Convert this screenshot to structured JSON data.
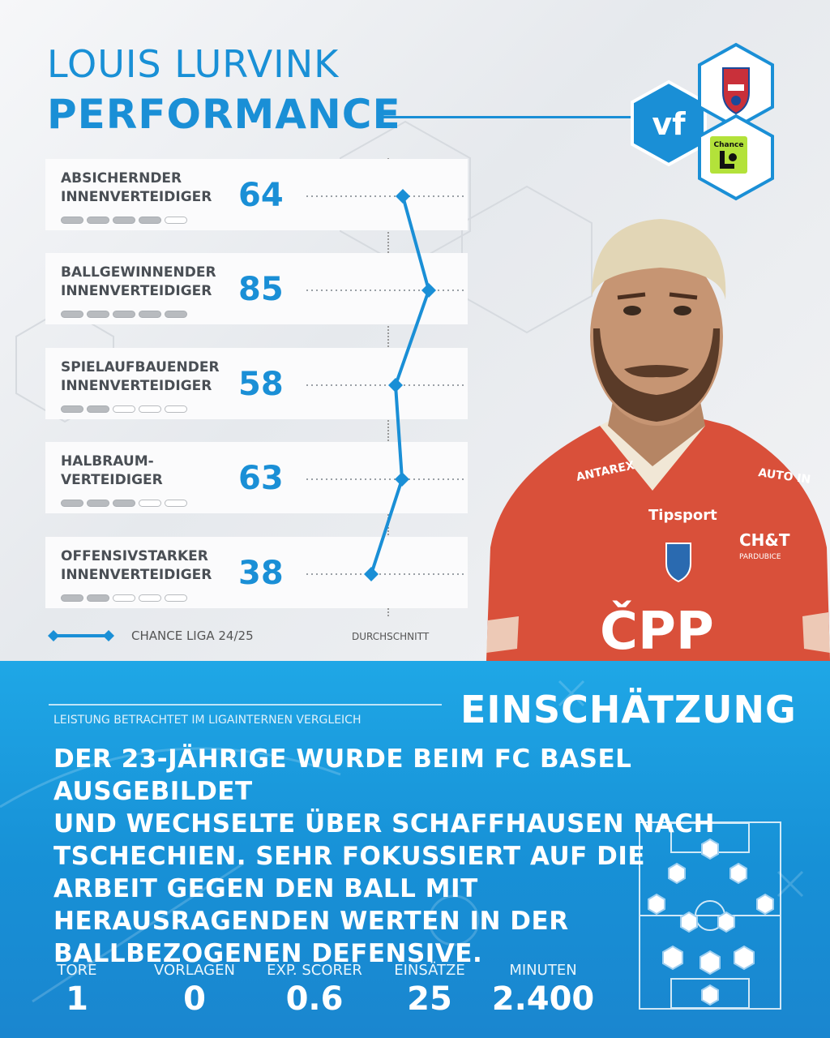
{
  "header": {
    "player_name": "LOUIS LURVINK",
    "title": "PERFORMANCE",
    "brand_logo": "vf",
    "club_crest": "Pardubice crest",
    "league_logo_text": "Chance"
  },
  "roles": [
    {
      "label": "ABSICHERNDER\nINNENVERTEIDIGER",
      "score": "64",
      "rating": 4
    },
    {
      "label": "BALLGEWINNENDER\nINNENVERTEIDIGER",
      "score": "85",
      "rating": 5
    },
    {
      "label": "SPIELAUFBAUENDER\nINNENVERTEIDIGER",
      "score": "58",
      "rating": 2
    },
    {
      "label": "HALBRAUM-\nVERTEIDIGER",
      "score": "63",
      "rating": 3
    },
    {
      "label": "OFFENSIVSTARKER\nINNENVERTEIDIGER",
      "score": "38",
      "rating": 2
    }
  ],
  "legend": {
    "series_label": "CHANCE LIGA 24/25",
    "average_label": "DURCHSCHNITT"
  },
  "jersey": {
    "sponsor_left": "ANTAREX",
    "sponsor_right": "AUTO IN",
    "sponsor_main": "Tipsport",
    "partner": "CH&T",
    "partner_sub": "PARDUBICE",
    "chest": "ČPP"
  },
  "assessment": {
    "subline": "LEISTUNG BETRACHTET IM LIGAINTERNEN VERGLEICH",
    "title": "EINSCHÄTZUNG",
    "text_lines": [
      "DER 23-JÄHRIGE WURDE BEIM FC BASEL AUSGEBILDET",
      "UND WECHSELTE ÜBER SCHAFFHAUSEN NACH",
      "TSCHECHIEN. SEHR FOKUSSIERT AUF DIE",
      "ARBEIT GEGEN DEN BALL MIT",
      "HERAUSRAGENDEN WERTEN IN DER",
      "BALLBEZOGENEN DEFENSIVE."
    ]
  },
  "stats": [
    {
      "label": "TORE",
      "value": "1"
    },
    {
      "label": "VORLAGEN",
      "value": "0"
    },
    {
      "label": "EXP. SCORER",
      "value": "0.6"
    },
    {
      "label": "EINSÄTZE",
      "value": "25"
    },
    {
      "label": "MINUTEN",
      "value": "2.400"
    }
  ],
  "colors": {
    "accent": "#1a8fd6",
    "panel": "#1fa7e6",
    "jersey": "#d9503a"
  }
}
